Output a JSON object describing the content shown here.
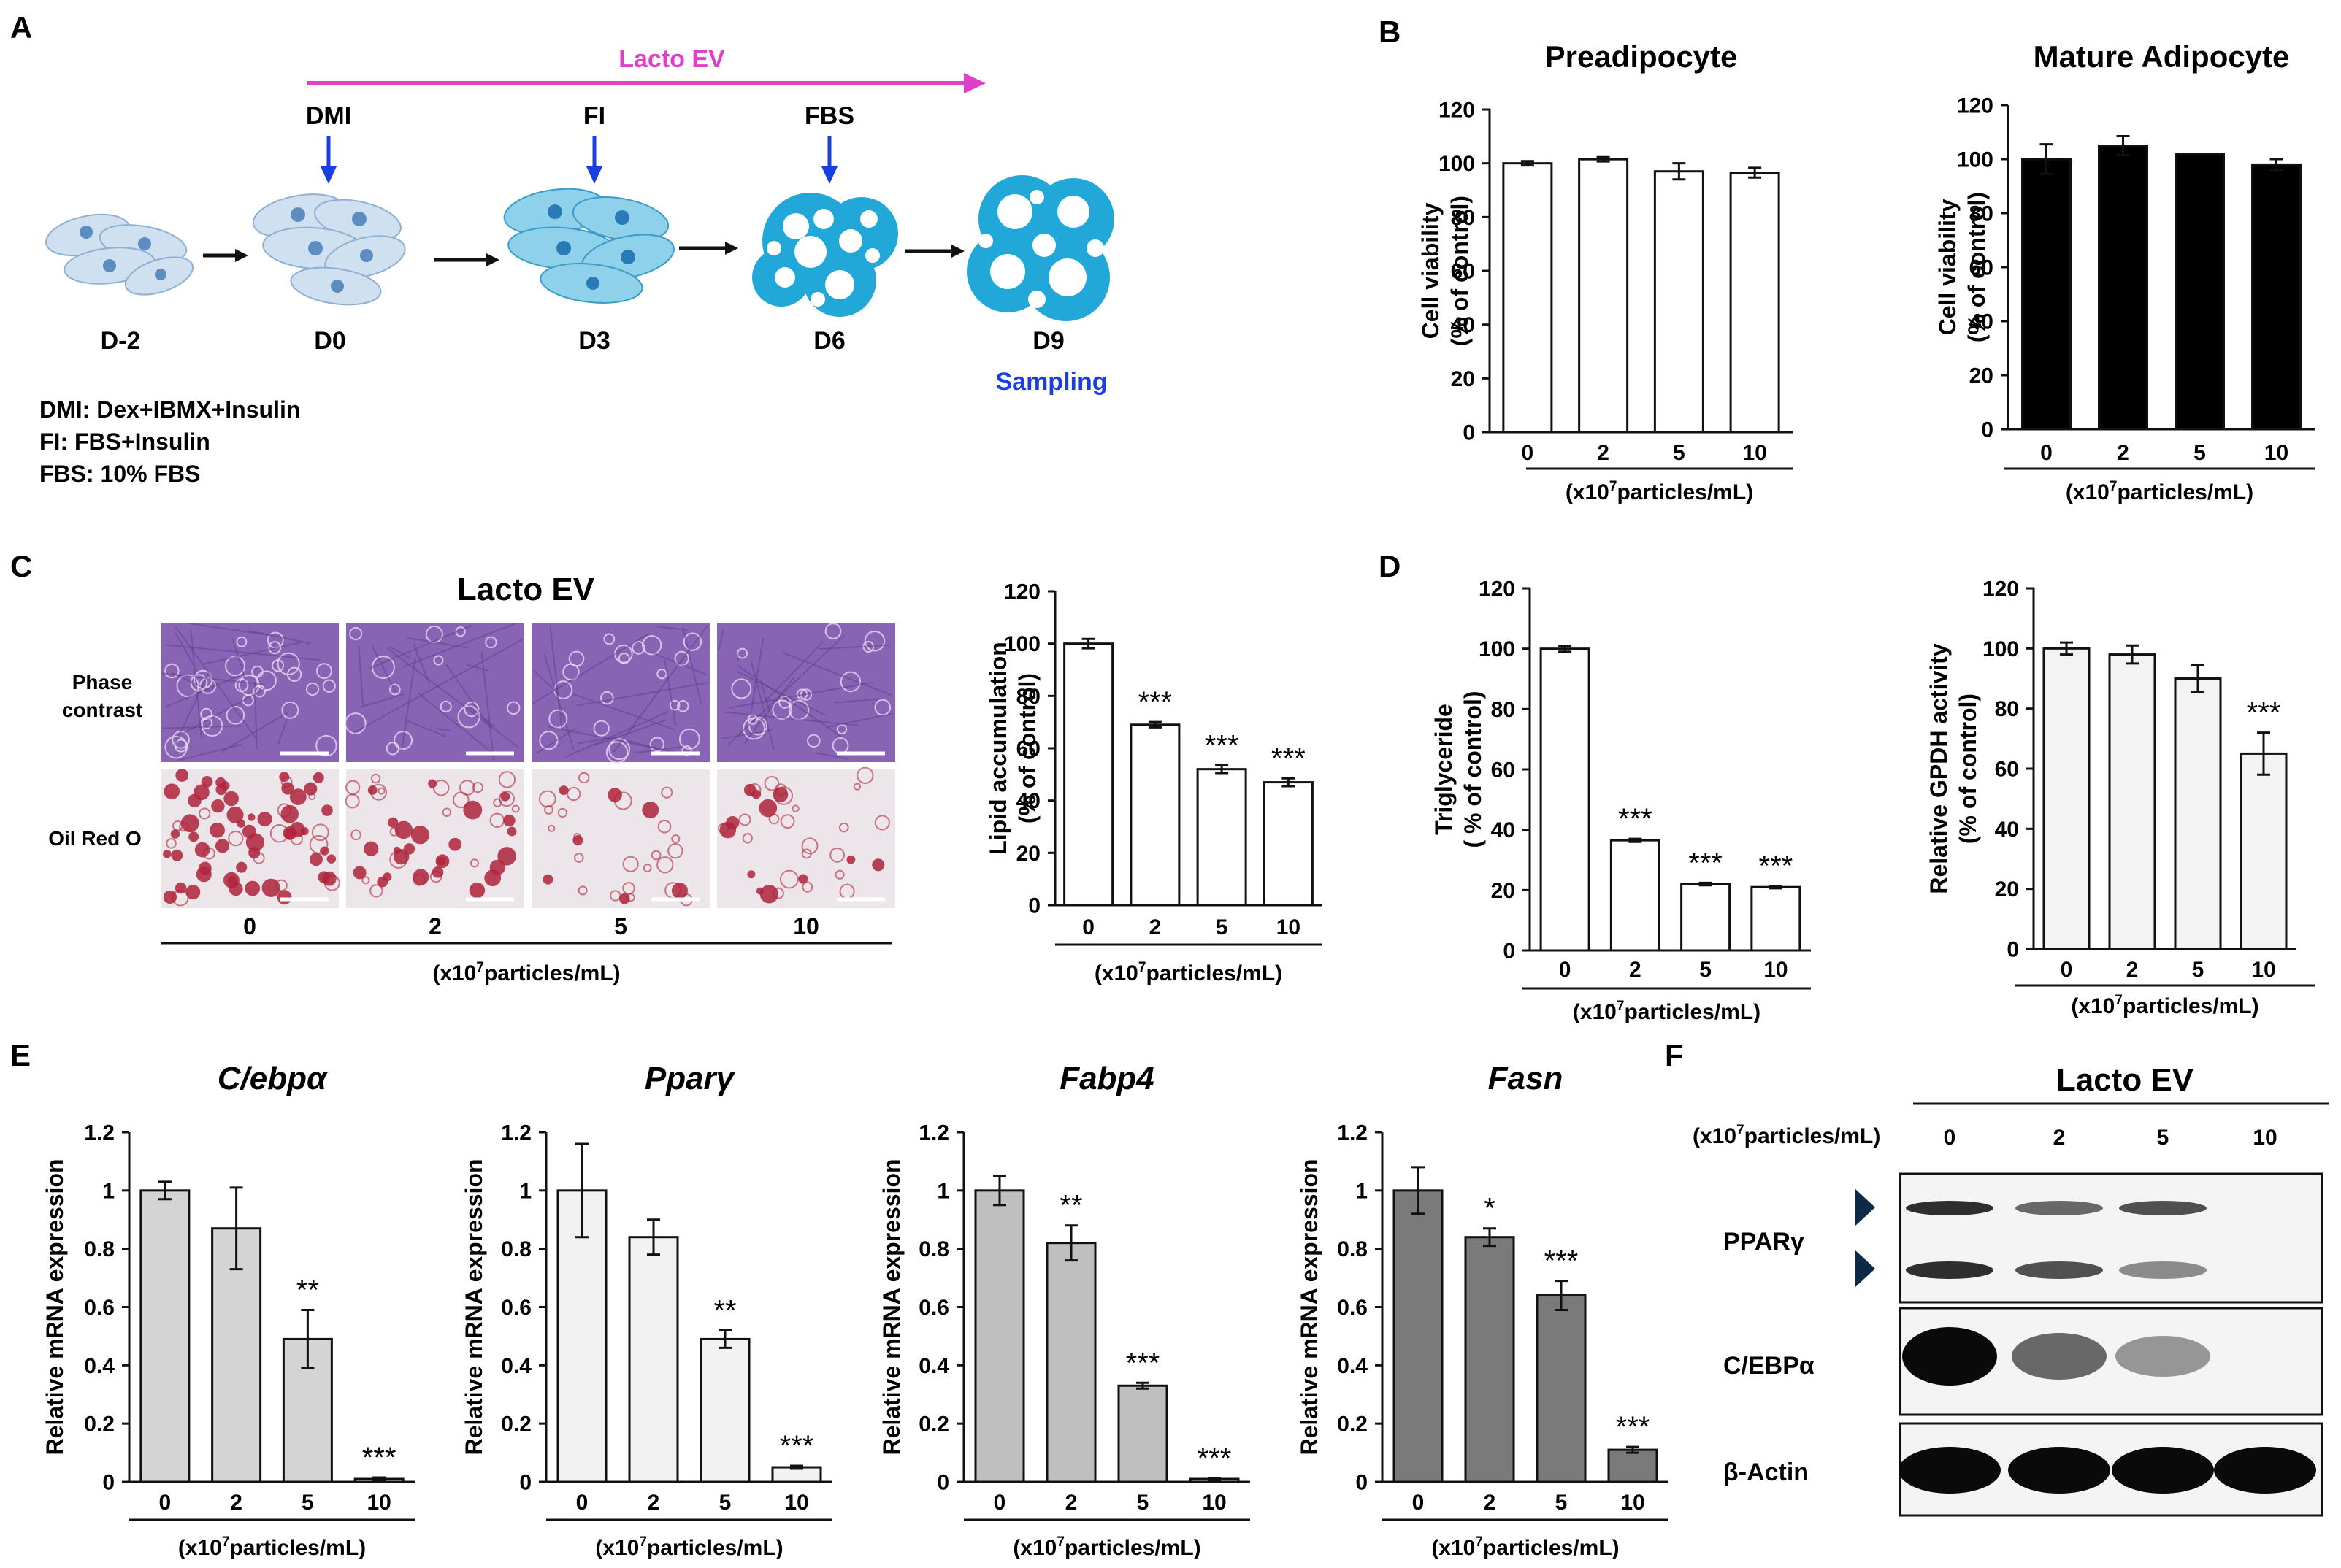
{
  "panels": {
    "A": "A",
    "B": "B",
    "C": "C",
    "D": "D",
    "E": "E",
    "F": "F"
  },
  "schematic": {
    "treatment_label": "Lacto EV",
    "timeline": [
      {
        "day": "D-2",
        "reagent": "",
        "sampling": ""
      },
      {
        "day": "D0",
        "reagent": "DMI",
        "sampling": ""
      },
      {
        "day": "D3",
        "reagent": "FI",
        "sampling": ""
      },
      {
        "day": "D6",
        "reagent": "FBS",
        "sampling": ""
      },
      {
        "day": "D9",
        "reagent": "",
        "sampling": "Sampling"
      }
    ],
    "legend": [
      "DMI: Dex+IBMX+Insulin",
      "FI: FBS+Insulin",
      "FBS: 10% FBS"
    ],
    "colors": {
      "treatment": "#e040c8",
      "arrow": "#1a3fe0",
      "sampling": "#1a3fe0",
      "cell_light": "#cfe0f0",
      "cell_dark": "#22a8d8"
    }
  },
  "micrographs": {
    "title": "Lacto EV",
    "row_labels": [
      "Phase\ncontrast",
      "Oil Red O"
    ],
    "doses": [
      "0",
      "2",
      "5",
      "10"
    ],
    "unit_pre": "(x10",
    "unit_sup": "7",
    "unit_post": "particles/mL)",
    "colors": {
      "phase": "#8a64b4",
      "oil_bg": "#ece6ea",
      "oil_drop": "#b0243c"
    }
  },
  "western": {
    "title": "Lacto EV",
    "unit_label_pre": "(x10",
    "unit_label_sup": "7",
    "unit_label_post": "particles/mL)",
    "doses": [
      "0",
      "2",
      "5",
      "10"
    ],
    "proteins": [
      "PPARγ",
      "C/EBPα",
      "β-Actin"
    ],
    "band_intensity": {
      "PPARγ_upper": [
        0.85,
        0.6,
        0.7,
        0.0
      ],
      "PPARγ_lower": [
        0.85,
        0.7,
        0.45,
        0.0
      ],
      "C/EBPα": [
        1.0,
        0.6,
        0.4,
        0.0
      ],
      "β-Actin": [
        1.0,
        1.0,
        1.0,
        1.0
      ]
    }
  },
  "chart_data": [
    {
      "id": "B1",
      "type": "bar",
      "title": "Preadipocyte",
      "ylabel": [
        "Cell viability",
        "(% of control)"
      ],
      "categories": [
        "0",
        "2",
        "5",
        "10"
      ],
      "values": [
        100,
        101.5,
        97,
        96.5
      ],
      "errors": [
        0.8,
        0.8,
        3,
        1.8
      ],
      "ylim": [
        0,
        120
      ],
      "yticks": [
        "0",
        "20",
        "40",
        "60",
        "80",
        "100",
        "120"
      ],
      "sig": [
        "",
        "",
        "",
        ""
      ],
      "fill": "#ffffff",
      "xlabel": {
        "pre": "(x10",
        "sup": "7",
        "post": "particles/mL)"
      }
    },
    {
      "id": "B2",
      "type": "bar",
      "title": "Mature Adipocyte",
      "ylabel": [
        "Cell viability",
        "(% of control)"
      ],
      "categories": [
        "0",
        "2",
        "5",
        "10"
      ],
      "values": [
        100,
        105,
        102,
        98
      ],
      "errors": [
        5.5,
        3.5,
        0,
        2
      ],
      "ylim": [
        0,
        120
      ],
      "yticks": [
        "0",
        "20",
        "40",
        "60",
        "80",
        "100",
        "120"
      ],
      "sig": [
        "",
        "",
        "",
        ""
      ],
      "fill": "#000000",
      "xlabel": {
        "pre": "(x10",
        "sup": "7",
        "post": "particles/mL)"
      }
    },
    {
      "id": "C1",
      "type": "bar",
      "title": "",
      "ylabel": [
        "Lipid accumulation",
        "(% of control)"
      ],
      "categories": [
        "0",
        "2",
        "5",
        "10"
      ],
      "values": [
        100,
        69,
        52,
        47
      ],
      "errors": [
        1.8,
        1,
        1.5,
        1.5
      ],
      "ylim": [
        0,
        120
      ],
      "yticks": [
        "0",
        "20",
        "40",
        "60",
        "80",
        "100",
        "120"
      ],
      "sig": [
        "",
        "***",
        "***",
        "***"
      ],
      "fill": "#ffffff",
      "xlabel": {
        "pre": "(x10",
        "sup": "7",
        "post": "particles/mL)"
      }
    },
    {
      "id": "D1",
      "type": "bar",
      "title": "",
      "ylabel": [
        "Triglyceride",
        "( % of control)"
      ],
      "categories": [
        "0",
        "2",
        "5",
        "10"
      ],
      "values": [
        100,
        36.5,
        22,
        21
      ],
      "errors": [
        1,
        0.5,
        0.4,
        0.4
      ],
      "ylim": [
        0,
        120
      ],
      "yticks": [
        "0",
        "20",
        "40",
        "60",
        "80",
        "100",
        "120"
      ],
      "sig": [
        "",
        "***",
        "***",
        "***"
      ],
      "fill": "#ffffff",
      "xlabel": {
        "pre": "(x10",
        "sup": "7",
        "post": "particles/mL)"
      }
    },
    {
      "id": "D2",
      "type": "bar",
      "title": "",
      "ylabel": [
        "Relative GPDH activity",
        "(% of control)"
      ],
      "categories": [
        "0",
        "2",
        "5",
        "10"
      ],
      "values": [
        100,
        98,
        90,
        65
      ],
      "errors": [
        2,
        3,
        4.5,
        7
      ],
      "ylim": [
        0,
        120
      ],
      "yticks": [
        "0",
        "20",
        "40",
        "60",
        "80",
        "100",
        "120"
      ],
      "sig": [
        "",
        "",
        "",
        "***"
      ],
      "fill": "#f3f3f3",
      "xlabel": {
        "pre": "(x10",
        "sup": "7",
        "post": "particles/mL)"
      }
    },
    {
      "id": "E1",
      "type": "bar",
      "title": "C/ebpα",
      "ylabel": [
        "Relative mRNA expression"
      ],
      "categories": [
        "0",
        "2",
        "5",
        "10"
      ],
      "values": [
        1.0,
        0.87,
        0.49,
        0.01
      ],
      "errors": [
        0.03,
        0.14,
        0.1,
        0.005
      ],
      "ylim": [
        0,
        1.2
      ],
      "yticks": [
        "0",
        "0.2",
        "0.4",
        "0.6",
        "0.8",
        "1",
        "1.2"
      ],
      "sig": [
        "",
        "",
        "**",
        "***"
      ],
      "fill": "#d4d4d4",
      "xlabel": {
        "pre": "(x10",
        "sup": "7",
        "post": "particles/mL)"
      }
    },
    {
      "id": "E2",
      "type": "bar",
      "title": "Pparγ",
      "ylabel": [
        "Relative mRNA expression"
      ],
      "categories": [
        "0",
        "2",
        "5",
        "10"
      ],
      "values": [
        1.0,
        0.84,
        0.49,
        0.05
      ],
      "errors": [
        0.16,
        0.06,
        0.03,
        0.005
      ],
      "ylim": [
        0,
        1.2
      ],
      "yticks": [
        "0",
        "0.2",
        "0.4",
        "0.6",
        "0.8",
        "1",
        "1.2"
      ],
      "sig": [
        "",
        "",
        "**",
        "***"
      ],
      "fill": "#f2f2f2",
      "xlabel": {
        "pre": "(x10",
        "sup": "7",
        "post": "particles/mL)"
      }
    },
    {
      "id": "E3",
      "type": "bar",
      "title": "Fabp4",
      "ylabel": [
        "Relative mRNA expression"
      ],
      "categories": [
        "0",
        "2",
        "5",
        "10"
      ],
      "values": [
        1.0,
        0.82,
        0.33,
        0.01
      ],
      "errors": [
        0.05,
        0.06,
        0.01,
        0.003
      ],
      "ylim": [
        0,
        1.2
      ],
      "yticks": [
        "0",
        "0.2",
        "0.4",
        "0.6",
        "0.8",
        "1",
        "1.2"
      ],
      "sig": [
        "",
        "**",
        "***",
        "***"
      ],
      "fill": "#bfbfbf",
      "xlabel": {
        "pre": "(x10",
        "sup": "7",
        "post": "particles/mL)"
      }
    },
    {
      "id": "E4",
      "type": "bar",
      "title": "Fasn",
      "ylabel": [
        "Relative mRNA expression"
      ],
      "categories": [
        "0",
        "2",
        "5",
        "10"
      ],
      "values": [
        1.0,
        0.84,
        0.64,
        0.11
      ],
      "errors": [
        0.08,
        0.03,
        0.05,
        0.01
      ],
      "ylim": [
        0,
        1.2
      ],
      "yticks": [
        "0",
        "0.2",
        "0.4",
        "0.6",
        "0.8",
        "1",
        "1.2"
      ],
      "sig": [
        "",
        "*",
        "***",
        "***"
      ],
      "fill": "#7a7a7a",
      "xlabel": {
        "pre": "(x10",
        "sup": "7",
        "post": "particles/mL)"
      }
    }
  ]
}
